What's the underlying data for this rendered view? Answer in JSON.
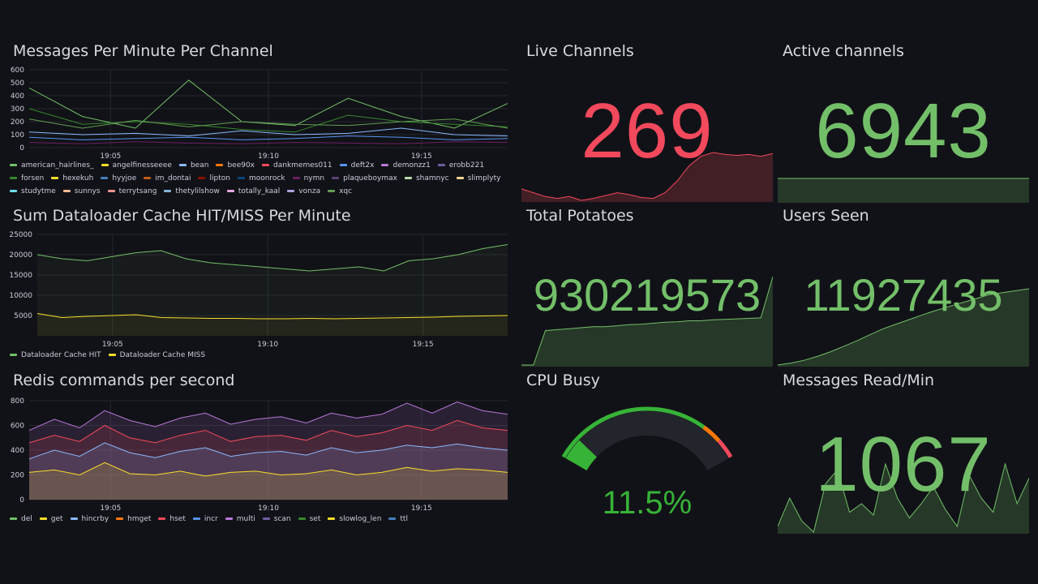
{
  "panels": {
    "messages_per_minute": {
      "title": "Messages Per Minute Per Channel",
      "y_ticks": [
        "600",
        "500",
        "400",
        "300",
        "200",
        "100",
        "0"
      ],
      "x_ticks": [
        "19:05",
        "19:10",
        "19:15"
      ],
      "legend": [
        {
          "name": "american_hairlines_",
          "color": "#73bf69"
        },
        {
          "name": "angelfinesseeee",
          "color": "#fade2a"
        },
        {
          "name": "bean",
          "color": "#8ab8ff"
        },
        {
          "name": "bee90x",
          "color": "#ff780a"
        },
        {
          "name": "dankmemes011",
          "color": "#f2495c"
        },
        {
          "name": "deft2x",
          "color": "#5794f2"
        },
        {
          "name": "demonzz1",
          "color": "#b877d9"
        },
        {
          "name": "erobb221",
          "color": "#705da0"
        },
        {
          "name": "forsen",
          "color": "#37872d"
        },
        {
          "name": "hexekuh",
          "color": "#fade2a"
        },
        {
          "name": "hyyjoe",
          "color": "#447ebc"
        },
        {
          "name": "im_dontai",
          "color": "#c15c17"
        },
        {
          "name": "lipton",
          "color": "#890f02"
        },
        {
          "name": "moonrock",
          "color": "#0a437c"
        },
        {
          "name": "nymn",
          "color": "#6d1f62"
        },
        {
          "name": "plaqueboymax",
          "color": "#584477"
        },
        {
          "name": "shamnyc",
          "color": "#b7dbab"
        },
        {
          "name": "slimplyty",
          "color": "#f4d598"
        },
        {
          "name": "studytme",
          "color": "#70dbed"
        },
        {
          "name": "sunnys",
          "color": "#f9ba8f"
        },
        {
          "name": "terrytsang",
          "color": "#f29191"
        },
        {
          "name": "thetylilshow",
          "color": "#82b5d8"
        },
        {
          "name": "totally_kaal",
          "color": "#e5a8e2"
        },
        {
          "name": "vonza",
          "color": "#aea2e0"
        },
        {
          "name": "xqc",
          "color": "#629e51"
        }
      ]
    },
    "dataloader": {
      "title": "Sum Dataloader Cache HIT/MISS Per Minute",
      "y_ticks": [
        "25000",
        "20000",
        "15000",
        "10000",
        "5000"
      ],
      "x_ticks": [
        "19:05",
        "19:10",
        "19:15"
      ],
      "legend": [
        {
          "name": "Dataloader Cache HIT",
          "color": "#73bf69"
        },
        {
          "name": "Dataloader Cache MISS",
          "color": "#fade2a"
        }
      ]
    },
    "redis": {
      "title": "Redis commands per second",
      "y_ticks": [
        "800",
        "600",
        "400",
        "200",
        "0"
      ],
      "x_ticks": [
        "19:05",
        "19:10",
        "19:15"
      ],
      "legend": [
        {
          "name": "del",
          "color": "#73bf69"
        },
        {
          "name": "get",
          "color": "#fade2a"
        },
        {
          "name": "hincrby",
          "color": "#8ab8ff"
        },
        {
          "name": "hmget",
          "color": "#ff780a"
        },
        {
          "name": "hset",
          "color": "#f2495c"
        },
        {
          "name": "incr",
          "color": "#5794f2"
        },
        {
          "name": "multi",
          "color": "#b877d9"
        },
        {
          "name": "scan",
          "color": "#705da0"
        },
        {
          "name": "set",
          "color": "#37872d"
        },
        {
          "name": "slowlog_len",
          "color": "#fade2a"
        },
        {
          "name": "ttl",
          "color": "#447ebc"
        }
      ]
    },
    "live_channels": {
      "title": "Live Channels",
      "value": "269",
      "color": "#f2495c"
    },
    "active_channels": {
      "title": "Active channels",
      "value": "6943",
      "color": "#73bf69"
    },
    "total_potatoes": {
      "title": "Total Potatoes",
      "value": "930219573",
      "color": "#73bf69"
    },
    "users_seen": {
      "title": "Users Seen",
      "value": "11927435",
      "color": "#73bf69"
    },
    "cpu_busy": {
      "title": "CPU Busy",
      "value": "11.5%",
      "percent": 11.5,
      "color": "#37b337"
    },
    "messages_read": {
      "title": "Messages Read/Min",
      "value": "1067",
      "color": "#73bf69"
    }
  },
  "chart_data": [
    {
      "type": "line",
      "title": "Messages Per Minute Per Channel",
      "ylim": [
        0,
        600
      ],
      "x": [
        "19:01",
        "19:03",
        "19:05",
        "19:07",
        "19:09",
        "19:11",
        "19:13",
        "19:15",
        "19:17",
        "19:19"
      ],
      "series": [
        {
          "name": "american_hairlines_",
          "values": [
            460,
            240,
            150,
            520,
            200,
            170,
            380,
            240,
            150,
            340
          ]
        },
        {
          "name": "forsen",
          "values": [
            300,
            180,
            200,
            180,
            140,
            120,
            250,
            200,
            180,
            160
          ]
        },
        {
          "name": "xqc",
          "values": [
            220,
            150,
            210,
            160,
            200,
            180,
            170,
            200,
            220,
            150
          ]
        },
        {
          "name": "bean",
          "values": [
            120,
            100,
            110,
            90,
            130,
            100,
            110,
            150,
            100,
            90
          ]
        },
        {
          "name": "deft2x",
          "values": [
            80,
            60,
            70,
            80,
            60,
            70,
            90,
            80,
            60,
            70
          ]
        },
        {
          "name": "nymn",
          "values": [
            40,
            30,
            45,
            35,
            30,
            40,
            35,
            30,
            45,
            40
          ]
        }
      ]
    },
    {
      "type": "area",
      "title": "Sum Dataloader Cache HIT/MISS Per Minute",
      "ylim": [
        0,
        25000
      ],
      "x": [
        "19:01",
        "19:02",
        "19:03",
        "19:04",
        "19:05",
        "19:06",
        "19:07",
        "19:08",
        "19:09",
        "19:10",
        "19:11",
        "19:12",
        "19:13",
        "19:14",
        "19:15",
        "19:16",
        "19:17",
        "19:18",
        "19:19",
        "19:20"
      ],
      "series": [
        {
          "name": "Dataloader Cache HIT",
          "values": [
            20000,
            19000,
            18500,
            19500,
            20500,
            21000,
            19000,
            18000,
            17500,
            17000,
            16500,
            16000,
            16500,
            17000,
            16000,
            18500,
            19000,
            20000,
            21500,
            22500
          ]
        },
        {
          "name": "Dataloader Cache MISS",
          "values": [
            5500,
            4500,
            4800,
            5000,
            5200,
            4500,
            4400,
            4300,
            4300,
            4200,
            4200,
            4300,
            4200,
            4300,
            4400,
            4500,
            4600,
            4800,
            4900,
            5000
          ]
        }
      ]
    },
    {
      "type": "area",
      "title": "Redis commands per second",
      "ylim": [
        0,
        800
      ],
      "x": [
        "19:01",
        "19:02",
        "19:03",
        "19:04",
        "19:05",
        "19:06",
        "19:07",
        "19:08",
        "19:09",
        "19:10",
        "19:11",
        "19:12",
        "19:13",
        "19:14",
        "19:15",
        "19:16",
        "19:17",
        "19:18",
        "19:19",
        "19:20"
      ],
      "series": [
        {
          "name": "get",
          "values": [
            220,
            240,
            200,
            300,
            210,
            200,
            230,
            190,
            220,
            230,
            200,
            210,
            240,
            200,
            220,
            260,
            230,
            250,
            240,
            220
          ]
        },
        {
          "name": "hincrby",
          "values": [
            330,
            400,
            350,
            460,
            380,
            340,
            390,
            420,
            350,
            380,
            390,
            360,
            420,
            380,
            400,
            440,
            420,
            450,
            420,
            400
          ]
        },
        {
          "name": "hset",
          "values": [
            460,
            520,
            470,
            600,
            500,
            460,
            520,
            560,
            470,
            510,
            520,
            480,
            560,
            510,
            540,
            600,
            560,
            640,
            580,
            560
          ]
        },
        {
          "name": "multi",
          "values": [
            560,
            650,
            580,
            720,
            640,
            590,
            660,
            700,
            610,
            650,
            670,
            620,
            700,
            660,
            690,
            780,
            700,
            790,
            720,
            690
          ]
        }
      ]
    },
    {
      "type": "area",
      "title": "Live Channels",
      "values": [
        80,
        60,
        40,
        30,
        40,
        20,
        30,
        45,
        60,
        50,
        35,
        30,
        60,
        120,
        200,
        250,
        270,
        260,
        255,
        260,
        250,
        265
      ]
    },
    {
      "type": "area",
      "title": "Total Potatoes",
      "values": [
        0,
        0,
        700,
        720,
        740,
        760,
        780,
        780,
        800,
        820,
        830,
        850,
        870,
        880,
        900,
        900,
        920,
        930,
        940,
        950,
        960,
        1800
      ]
    },
    {
      "type": "area",
      "title": "Users Seen",
      "values": [
        0,
        50,
        120,
        220,
        340,
        480,
        620,
        780,
        930,
        1050,
        1170,
        1290,
        1400,
        1500,
        1600,
        1700,
        1800,
        1850,
        1900,
        1950
      ]
    },
    {
      "type": "area",
      "title": "Messages Read/Min",
      "values": [
        900,
        1000,
        920,
        880,
        1050,
        1100,
        950,
        980,
        940,
        1120,
        1000,
        930,
        980,
        1040,
        960,
        900,
        1080,
        1000,
        950,
        1120,
        980,
        1070
      ]
    }
  ]
}
